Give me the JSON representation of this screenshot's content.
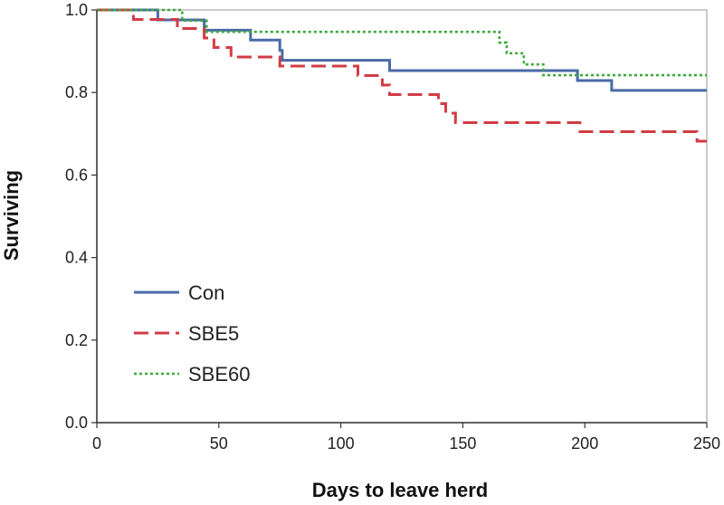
{
  "chart_data": {
    "type": "line",
    "step": true,
    "xlabel": "Days to leave herd",
    "ylabel": "Surviving",
    "xlim": [
      0,
      250
    ],
    "ylim": [
      0,
      1.0
    ],
    "xticks": [
      0,
      50,
      100,
      150,
      200,
      250
    ],
    "yticks": [
      0.0,
      0.2,
      0.4,
      0.6,
      0.8,
      1.0
    ],
    "xtick_labels": [
      "0",
      "50",
      "100",
      "150",
      "200",
      "250"
    ],
    "ytick_labels": [
      "0.0",
      "0.2",
      "0.4",
      "0.6",
      "0.8",
      "1.0"
    ],
    "grid": false,
    "legend_position": "lower-left",
    "series": [
      {
        "name": "Con",
        "color": "#4a6aa8",
        "style": "solid",
        "x": [
          0,
          25,
          44,
          63,
          75,
          76,
          120,
          160,
          197,
          211,
          250
        ],
        "y": [
          1.0,
          0.976,
          0.951,
          0.927,
          0.902,
          0.878,
          0.853,
          0.853,
          0.829,
          0.805,
          0.805
        ]
      },
      {
        "name": "SBE5",
        "color": "#d23c45",
        "style": "dashed",
        "x": [
          0,
          15,
          33,
          44,
          48,
          55,
          75,
          107,
          117,
          120,
          140,
          143,
          147,
          198,
          246,
          250
        ],
        "y": [
          1.0,
          0.977,
          0.955,
          0.932,
          0.909,
          0.886,
          0.864,
          0.841,
          0.818,
          0.795,
          0.773,
          0.75,
          0.727,
          0.705,
          0.682,
          0.682
        ]
      },
      {
        "name": "SBE60",
        "color": "#3aaa3a",
        "style": "dotted",
        "x": [
          0,
          35,
          45,
          165,
          168,
          175,
          178,
          183,
          250
        ],
        "y": [
          1.0,
          0.974,
          0.947,
          0.921,
          0.895,
          0.868,
          0.868,
          0.842,
          0.842
        ]
      }
    ]
  }
}
